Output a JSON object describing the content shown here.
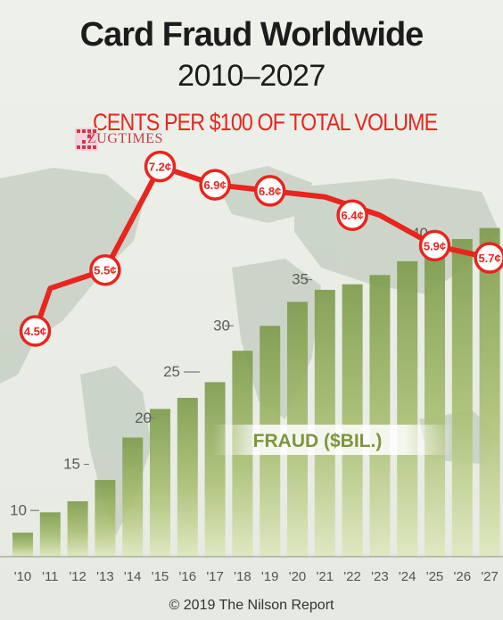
{
  "title": "Card Fraud Worldwide",
  "subtitle": "2010–2027",
  "watermark": "ZUGTIMES",
  "copyright": "© 2019 The Nilson Report",
  "chart_data": {
    "type": "bar",
    "categories": [
      "'10",
      "'11",
      "'12",
      "'13",
      "'14",
      "'15",
      "'16",
      "'17",
      "'18",
      "'19",
      "'20",
      "'21",
      "'22",
      "'23",
      "'24",
      "'25",
      "'26",
      "'27"
    ],
    "ylim": [
      5,
      40
    ],
    "y_ticks": [
      10,
      15,
      20,
      25,
      30,
      35,
      40
    ],
    "grid": false,
    "series": [
      {
        "name": "FRAUD ($BIL.)",
        "type": "bar",
        "color": "#a6be6c",
        "values": [
          7.6,
          9.8,
          11.0,
          13.3,
          17.9,
          21.0,
          22.2,
          23.9,
          27.3,
          30.0,
          32.6,
          33.9,
          34.5,
          35.5,
          37.0,
          37.8,
          39.4,
          40.6
        ]
      },
      {
        "name": "CENTS PER $100 OF TOTAL VOLUME",
        "type": "line",
        "color": "#e8251e",
        "x": [
          "'10",
          "'11",
          "'13",
          "'15",
          "'17",
          "'19",
          "'21",
          "'23",
          "'25",
          "'27"
        ],
        "values": [
          4.5,
          5.2,
          5.5,
          7.2,
          6.9,
          6.8,
          6.7,
          6.4,
          5.9,
          5.7
        ],
        "labeled_points": {
          "'10": "4.5¢",
          "'13": "5.5¢",
          "'15": "7.2¢",
          "'17": "6.9¢",
          "'19": "6.8¢",
          "'22": "6.4¢",
          "'25": "5.9¢",
          "'27": "5.7¢"
        }
      }
    ]
  }
}
